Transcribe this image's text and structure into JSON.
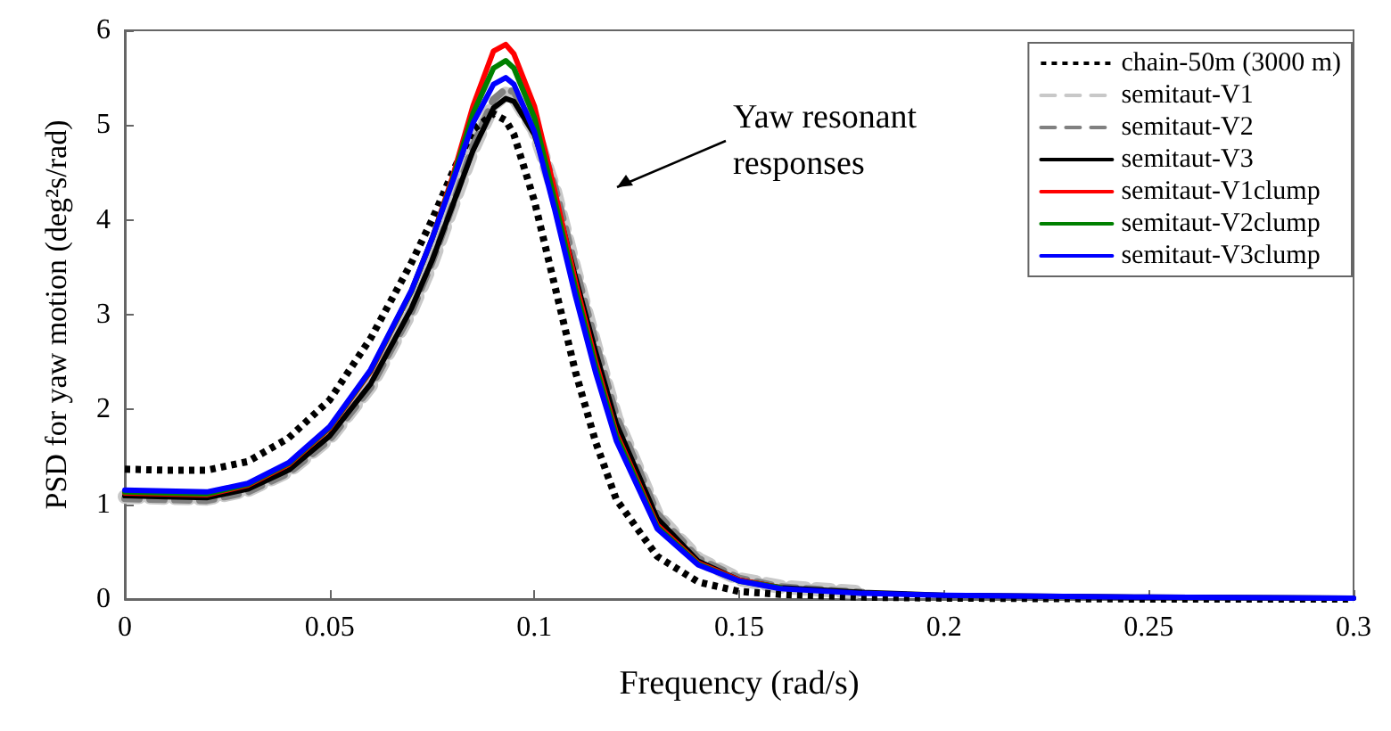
{
  "chart_data": {
    "type": "line",
    "xlabel": "Frequency (rad/s)",
    "ylabel": "PSD for yaw motion (deg²s/rad)",
    "x": [
      0,
      0.01,
      0.02,
      0.03,
      0.04,
      0.05,
      0.06,
      0.07,
      0.075,
      0.08,
      0.085,
      0.09,
      0.093,
      0.095,
      0.1,
      0.105,
      0.11,
      0.115,
      0.12,
      0.13,
      0.14,
      0.15,
      0.16,
      0.18,
      0.2,
      0.25,
      0.3
    ],
    "series": [
      {
        "name": "chain-50m (3000 m)",
        "color": "#000000",
        "line_style": "dotted",
        "values": [
          1.37,
          1.36,
          1.36,
          1.45,
          1.7,
          2.1,
          2.75,
          3.55,
          4.0,
          4.5,
          4.95,
          5.12,
          5.05,
          4.9,
          4.2,
          3.3,
          2.4,
          1.65,
          1.05,
          0.45,
          0.18,
          0.08,
          0.05,
          0.02,
          0.01,
          0.0,
          0.0
        ]
      },
      {
        "name": "semitaut-V1",
        "color": "#c8c8c8",
        "line_style": "dashed",
        "values": [
          1.08,
          1.07,
          1.06,
          1.15,
          1.35,
          1.7,
          2.25,
          3.05,
          3.55,
          4.15,
          4.75,
          5.22,
          5.33,
          5.3,
          4.95,
          4.3,
          3.45,
          2.65,
          1.9,
          0.88,
          0.42,
          0.21,
          0.13,
          0.07,
          null,
          null,
          null
        ]
      },
      {
        "name": "semitaut-V2",
        "color": "#808080",
        "line_style": "dashed",
        "values": [
          1.06,
          1.05,
          1.04,
          1.13,
          1.33,
          1.68,
          2.23,
          3.03,
          3.55,
          4.15,
          4.78,
          5.27,
          5.38,
          5.35,
          5.0,
          4.35,
          3.5,
          2.7,
          1.93,
          0.9,
          0.43,
          0.22,
          0.13,
          0.07,
          null,
          null,
          null
        ]
      },
      {
        "name": "semitaut-V3",
        "color": "#000000",
        "line_style": "solid",
        "values": [
          1.09,
          1.08,
          1.07,
          1.16,
          1.36,
          1.72,
          2.27,
          3.07,
          3.57,
          4.15,
          4.73,
          5.18,
          5.28,
          5.25,
          4.9,
          4.25,
          3.4,
          2.6,
          1.85,
          0.85,
          0.4,
          0.2,
          0.12,
          0.07,
          0.04,
          0.02,
          0.01
        ]
      },
      {
        "name": "semitaut-V1clump",
        "color": "#ff0000",
        "line_style": "solid",
        "values": [
          1.12,
          1.11,
          1.1,
          1.2,
          1.42,
          1.8,
          2.4,
          3.25,
          3.8,
          4.45,
          5.2,
          5.78,
          5.85,
          5.75,
          5.2,
          4.3,
          3.35,
          2.5,
          1.75,
          0.78,
          0.38,
          0.2,
          0.12,
          null,
          null,
          null,
          null
        ]
      },
      {
        "name": "semitaut-V2clump",
        "color": "#008000",
        "line_style": "solid",
        "values": [
          1.13,
          1.12,
          1.11,
          1.21,
          1.43,
          1.81,
          2.41,
          3.25,
          3.8,
          4.42,
          5.12,
          5.6,
          5.68,
          5.6,
          5.08,
          4.2,
          3.28,
          2.45,
          1.72,
          0.76,
          0.37,
          0.19,
          0.12,
          null,
          null,
          null,
          null
        ]
      },
      {
        "name": "semitaut-V3clump",
        "color": "#0000ff",
        "line_style": "solid",
        "values": [
          1.15,
          1.14,
          1.13,
          1.22,
          1.44,
          1.82,
          2.42,
          3.26,
          3.8,
          4.4,
          5.02,
          5.43,
          5.5,
          5.43,
          4.93,
          4.1,
          3.2,
          2.38,
          1.67,
          0.74,
          0.36,
          0.19,
          0.11,
          0.06,
          0.04,
          0.02,
          0.01
        ]
      }
    ],
    "xlim": [
      0,
      0.3
    ],
    "xticks": [
      0,
      0.05,
      0.1,
      0.15,
      0.2,
      0.25,
      0.3
    ],
    "ylim": [
      0,
      6
    ],
    "yticks": [
      0,
      1,
      2,
      3,
      4,
      5,
      6
    ],
    "annotations": [
      "Yaw resonant responses"
    ],
    "legend": "top right",
    "grid": false
  }
}
